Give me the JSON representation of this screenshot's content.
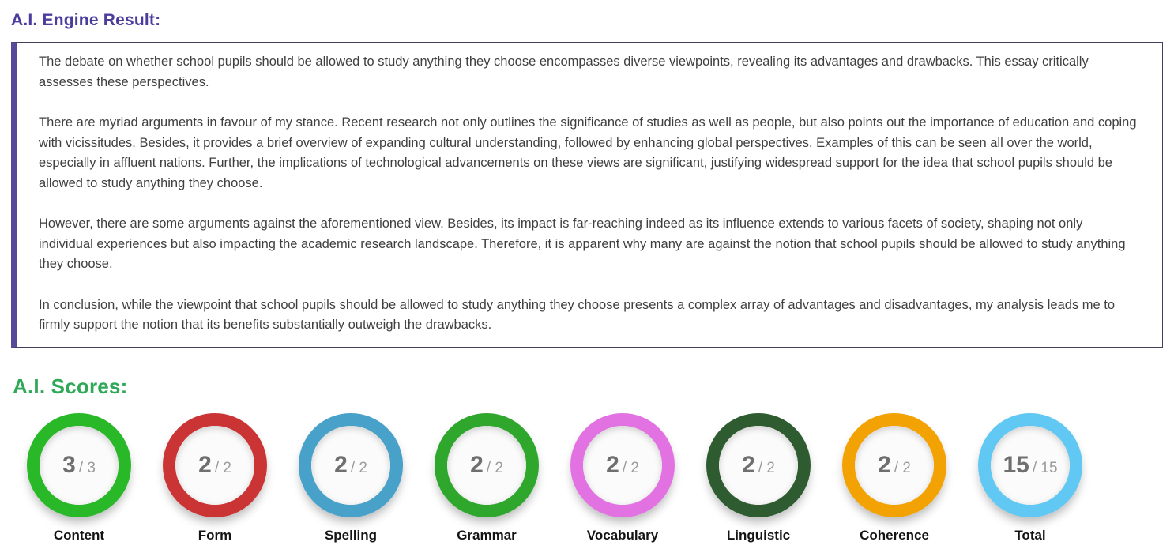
{
  "headings": {
    "engine_result": "A.I. Engine Result:",
    "scores": "A.I. Scores:"
  },
  "essay": {
    "paragraphs": [
      "The debate on whether school pupils should be allowed to study anything they choose encompasses diverse viewpoints, revealing its advantages and drawbacks. This essay critically assesses these perspectives.",
      "There are myriad arguments in favour of my stance. Recent research not only outlines the significance of studies as well as people, but also points out the importance of education and coping with vicissitudes. Besides, it provides a brief overview of expanding cultural understanding, followed by enhancing global perspectives. Examples of this can be seen all over the world, especially in affluent nations. Further, the implications of technological advancements on these views are significant, justifying widespread support for the idea that school pupils should be allowed to study anything they choose.",
      "However, there are some arguments against the aforementioned view. Besides, its impact is far-reaching indeed as its influence extends to various facets of society, shaping not only individual experiences but also impacting the academic research landscape. Therefore, it is apparent why many are against the notion that school pupils should be allowed to study anything they choose.",
      "In conclusion, while the viewpoint that school pupils should be allowed to study anything they choose presents a complex array of advantages and disadvantages, my analysis leads me to firmly support the notion that its benefits substantially outweigh the drawbacks."
    ]
  },
  "scores": [
    {
      "label": "Content",
      "value": 3,
      "max": 3,
      "display_value": "3",
      "display_max": "/ 3",
      "color": "#28b828"
    },
    {
      "label": "Form",
      "value": 2,
      "max": 2,
      "display_value": "2",
      "display_max": "/ 2",
      "color": "#cb3434"
    },
    {
      "label": "Spelling",
      "value": 2,
      "max": 2,
      "display_value": "2",
      "display_max": "/ 2",
      "color": "#48a1c9"
    },
    {
      "label": "Grammar",
      "value": 2,
      "max": 2,
      "display_value": "2",
      "display_max": "/ 2",
      "color": "#2fa62c"
    },
    {
      "label": "Vocabulary",
      "value": 2,
      "max": 2,
      "display_value": "2",
      "display_max": "/ 2",
      "color": "#e272e2"
    },
    {
      "label": "Linguistic",
      "value": 2,
      "max": 2,
      "display_value": "2",
      "display_max": "/ 2",
      "color": "#2e5c30"
    },
    {
      "label": "Coherence",
      "value": 2,
      "max": 2,
      "display_value": "2",
      "display_max": "/ 2",
      "color": "#f2a202"
    },
    {
      "label": "Total",
      "value": 15,
      "max": 15,
      "display_value": "15",
      "display_max": "/ 15",
      "color": "#60c8f2"
    }
  ],
  "colors": {
    "engine_heading": "#4b3d9c",
    "scores_heading": "#2fa857",
    "essay_box_border": "#45405c",
    "essay_box_left_bar": "#584a9b",
    "essay_text": "#3f3f3f",
    "score_number": "#6f6f6f",
    "score_denominator": "#9b9b9b",
    "score_label": "#141414"
  }
}
